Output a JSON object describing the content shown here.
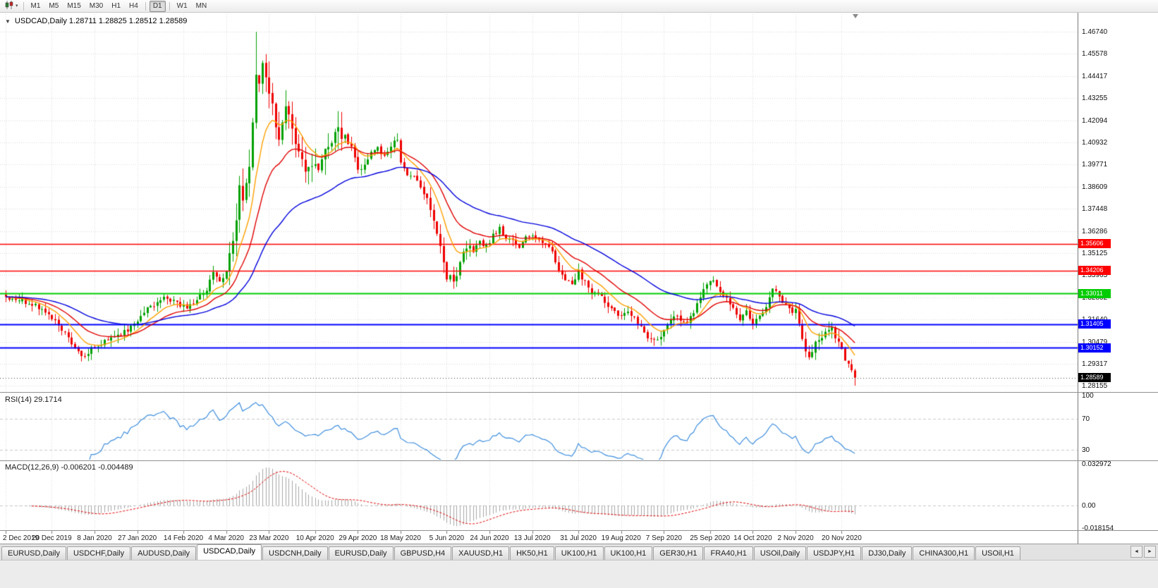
{
  "toolbar": {
    "chart_type_icon": "candlestick-chart-icon",
    "dropdown_glyph": "▾",
    "timeframe_groups": [
      [
        "M1",
        "M5",
        "M15",
        "M30",
        "H1",
        "H4"
      ],
      [
        "D1"
      ],
      [
        "W1",
        "MN"
      ]
    ],
    "active_timeframe": "D1"
  },
  "chart": {
    "collapse_glyph": "▼",
    "title": "USDCAD,Daily 1.28711 1.28825 1.28512 1.28589"
  },
  "chart_data": {
    "type": "candlestick",
    "symbol": "USDCAD",
    "timeframe": "Daily",
    "ohlc": {
      "open": "1.28711",
      "high": "1.28825",
      "low": "1.28512",
      "close": "1.28589"
    },
    "price_axis_labels": [
      "1.46740",
      "1.45578",
      "1.44417",
      "1.43255",
      "1.42094",
      "1.40932",
      "1.39771",
      "1.38609",
      "1.37448",
      "1.36286",
      "1.35125",
      "1.33963",
      "1.32802",
      "1.31640",
      "1.30479",
      "1.29317",
      "1.28155"
    ],
    "date_labels": [
      [
        0,
        "2 Dec 2019"
      ],
      [
        14,
        "20 Dec 2019"
      ],
      [
        27,
        "8 Jan 2020"
      ],
      [
        40,
        "27 Jan 2020"
      ],
      [
        54,
        "14 Feb 2020"
      ],
      [
        67,
        "4 Mar 2020"
      ],
      [
        80,
        "23 Mar 2020"
      ],
      [
        94,
        "10 Apr 2020"
      ],
      [
        107,
        "29 Apr 2020"
      ],
      [
        120,
        "18 May 2020"
      ],
      [
        134,
        "5 Jun 2020"
      ],
      [
        147,
        "24 Jun 2020"
      ],
      [
        160,
        "13 Jul 2020"
      ],
      [
        174,
        "31 Jul 2020"
      ],
      [
        187,
        "19 Aug 2020"
      ],
      [
        200,
        "7 Sep 2020"
      ],
      [
        214,
        "25 Sep 2020"
      ],
      [
        227,
        "14 Oct 2020"
      ],
      [
        240,
        "2 Nov 2020"
      ],
      [
        254,
        "20 Nov 2020"
      ]
    ],
    "horizontal_lines": [
      {
        "price": 1.35606,
        "label": "1.35606",
        "color": "#FF0000",
        "width": 1.4
      },
      {
        "price": 1.34206,
        "label": "1.34206",
        "color": "#FF0000",
        "width": 1.4
      },
      {
        "price": 1.33011,
        "label": "1.33011",
        "color": "#00CC00",
        "width": 2
      },
      {
        "price": 1.31405,
        "label": "1.31405",
        "color": "#0000FF",
        "width": 2
      },
      {
        "price": 1.30152,
        "label": "1.30152",
        "color": "#0000FF",
        "width": 2
      }
    ],
    "current_price": {
      "value": 1.28589,
      "label": "1.28589",
      "color": "#000000"
    },
    "candle_colors": {
      "up": "#00A000",
      "down": "#EE0000"
    },
    "num_candles": 259,
    "spike_high": {
      "index": 76,
      "price": 1.4674
    },
    "price_anchors": [
      [
        0,
        1.3285
      ],
      [
        4,
        1.3268
      ],
      [
        8,
        1.3243
      ],
      [
        12,
        1.3212
      ],
      [
        14,
        1.3165
      ],
      [
        17,
        1.3118
      ],
      [
        20,
        1.3035
      ],
      [
        22,
        1.2985
      ],
      [
        24,
        1.2978
      ],
      [
        26,
        1.3008
      ],
      [
        28,
        1.3032
      ],
      [
        31,
        1.3052
      ],
      [
        34,
        1.3075
      ],
      [
        37,
        1.3108
      ],
      [
        40,
        1.316
      ],
      [
        43,
        1.3218
      ],
      [
        46,
        1.3258
      ],
      [
        49,
        1.3282
      ],
      [
        52,
        1.3248
      ],
      [
        55,
        1.3232
      ],
      [
        58,
        1.3268
      ],
      [
        61,
        1.3325
      ],
      [
        63,
        1.3402
      ],
      [
        65,
        1.3362
      ],
      [
        67,
        1.3422
      ],
      [
        69,
        1.3565
      ],
      [
        70,
        1.3702
      ],
      [
        71,
        1.3845
      ],
      [
        72,
        1.3792
      ],
      [
        73,
        1.3905
      ],
      [
        74,
        1.3952
      ],
      [
        75,
        1.4172
      ],
      [
        76,
        1.4482
      ],
      [
        77,
        1.4435
      ],
      [
        78,
        1.4502
      ],
      [
        79,
        1.4402
      ],
      [
        80,
        1.4362
      ],
      [
        81,
        1.4292
      ],
      [
        82,
        1.4182
      ],
      [
        83,
        1.4082
      ],
      [
        84,
        1.4192
      ],
      [
        85,
        1.4262
      ],
      [
        86,
        1.4232
      ],
      [
        87,
        1.4152
      ],
      [
        89,
        1.4042
      ],
      [
        91,
        1.3962
      ],
      [
        93,
        1.3992
      ],
      [
        95,
        1.3922
      ],
      [
        97,
        1.4052
      ],
      [
        99,
        1.4102
      ],
      [
        101,
        1.4142
      ],
      [
        103,
        1.4122
      ],
      [
        105,
        1.4062
      ],
      [
        107,
        1.3952
      ],
      [
        109,
        1.3972
      ],
      [
        111,
        1.4032
      ],
      [
        113,
        1.4062
      ],
      [
        115,
        1.4022
      ],
      [
        117,
        1.4082
      ],
      [
        119,
        1.4102
      ],
      [
        120,
        1.3982
      ],
      [
        122,
        1.3932
      ],
      [
        125,
        1.3892
      ],
      [
        127,
        1.3832
      ],
      [
        129,
        1.3742
      ],
      [
        131,
        1.3612
      ],
      [
        133,
        1.3472
      ],
      [
        134,
        1.3392
      ],
      [
        136,
        1.3362
      ],
      [
        138,
        1.3462
      ],
      [
        140,
        1.3552
      ],
      [
        142,
        1.3532
      ],
      [
        144,
        1.3572
      ],
      [
        146,
        1.3552
      ],
      [
        148,
        1.3602
      ],
      [
        150,
        1.3642
      ],
      [
        152,
        1.3592
      ],
      [
        154,
        1.3572
      ],
      [
        156,
        1.3552
      ],
      [
        158,
        1.3592
      ],
      [
        160,
        1.3612
      ],
      [
        162,
        1.3572
      ],
      [
        164,
        1.3552
      ],
      [
        166,
        1.3522
      ],
      [
        168,
        1.3422
      ],
      [
        170,
        1.3382
      ],
      [
        172,
        1.3362
      ],
      [
        174,
        1.3412
      ],
      [
        176,
        1.3362
      ],
      [
        178,
        1.3292
      ],
      [
        180,
        1.3312
      ],
      [
        182,
        1.3252
      ],
      [
        184,
        1.3222
      ],
      [
        187,
        1.3182
      ],
      [
        189,
        1.3202
      ],
      [
        191,
        1.3182
      ],
      [
        193,
        1.3122
      ],
      [
        195,
        1.3072
      ],
      [
        197,
        1.3052
      ],
      [
        199,
        1.3072
      ],
      [
        201,
        1.3142
      ],
      [
        203,
        1.3182
      ],
      [
        205,
        1.3162
      ],
      [
        207,
        1.3142
      ],
      [
        209,
        1.3202
      ],
      [
        211,
        1.3292
      ],
      [
        213,
        1.3352
      ],
      [
        215,
        1.3372
      ],
      [
        217,
        1.3312
      ],
      [
        219,
        1.3282
      ],
      [
        221,
        1.3222
      ],
      [
        223,
        1.3162
      ],
      [
        225,
        1.3202
      ],
      [
        227,
        1.3142
      ],
      [
        229,
        1.3182
      ],
      [
        231,
        1.3242
      ],
      [
        233,
        1.3332
      ],
      [
        235,
        1.3282
      ],
      [
        237,
        1.3232
      ],
      [
        239,
        1.3192
      ],
      [
        240,
        1.3212
      ],
      [
        241,
        1.3152
      ],
      [
        242,
        1.3062
      ],
      [
        243,
        1.3002
      ],
      [
        244,
        1.2962
      ],
      [
        245,
        1.2987
      ],
      [
        246,
        1.3032
      ],
      [
        247,
        1.3062
      ],
      [
        249,
        1.3097
      ],
      [
        251,
        1.3112
      ],
      [
        252,
        1.3082
      ],
      [
        253,
        1.3042
      ],
      [
        254,
        1.2997
      ],
      [
        255,
        1.2962
      ],
      [
        256,
        1.2932
      ],
      [
        257,
        1.2902
      ],
      [
        258,
        1.28589
      ]
    ],
    "moving_averages": [
      {
        "name": "ma-fast",
        "period": 10,
        "color": "#FFA000"
      },
      {
        "name": "ma-medium",
        "period": 21,
        "color": "#E00000"
      },
      {
        "name": "ma-slow",
        "period": 50,
        "color": "#0000DD"
      }
    ],
    "indicators": {
      "rsi": {
        "label": "RSI(14) 29.1714",
        "period": 14,
        "current": 29.1714,
        "levels": [
          "100",
          "70",
          "30"
        ],
        "level_values": [
          100,
          70,
          30
        ],
        "color": "#3E8EDE"
      },
      "macd": {
        "label": "MACD(12,26,9) -0.006201 -0.004489",
        "fast": 12,
        "slow": 26,
        "signal_period": 9,
        "main": -0.006201,
        "signal": -0.004489,
        "axis_labels": [
          "0.032972",
          "0.00",
          "-0.018154"
        ],
        "axis_values": [
          0.032972,
          0,
          -0.018154
        ],
        "histogram_color": "#A6A6A6",
        "signal_color": "#E00000"
      }
    }
  },
  "tabbar": {
    "tabs": [
      "EURUSD,Daily",
      "USDCHF,Daily",
      "AUDUSD,Daily",
      "USDCAD,Daily",
      "USDCNH,Daily",
      "EURUSD,Daily",
      "GBPUSD,H4",
      "XAUUSD,H1",
      "HK50,H1",
      "UK100,H1",
      "UK100,H1",
      "GER30,H1",
      "FRA40,H1",
      "USOil,Daily",
      "USDJPY,H1",
      "DJ30,Daily",
      "CHINA300,H1",
      "USOil,H1"
    ],
    "active_index": 3,
    "scroll_left_glyph": "◄",
    "scroll_right_glyph": "►"
  }
}
